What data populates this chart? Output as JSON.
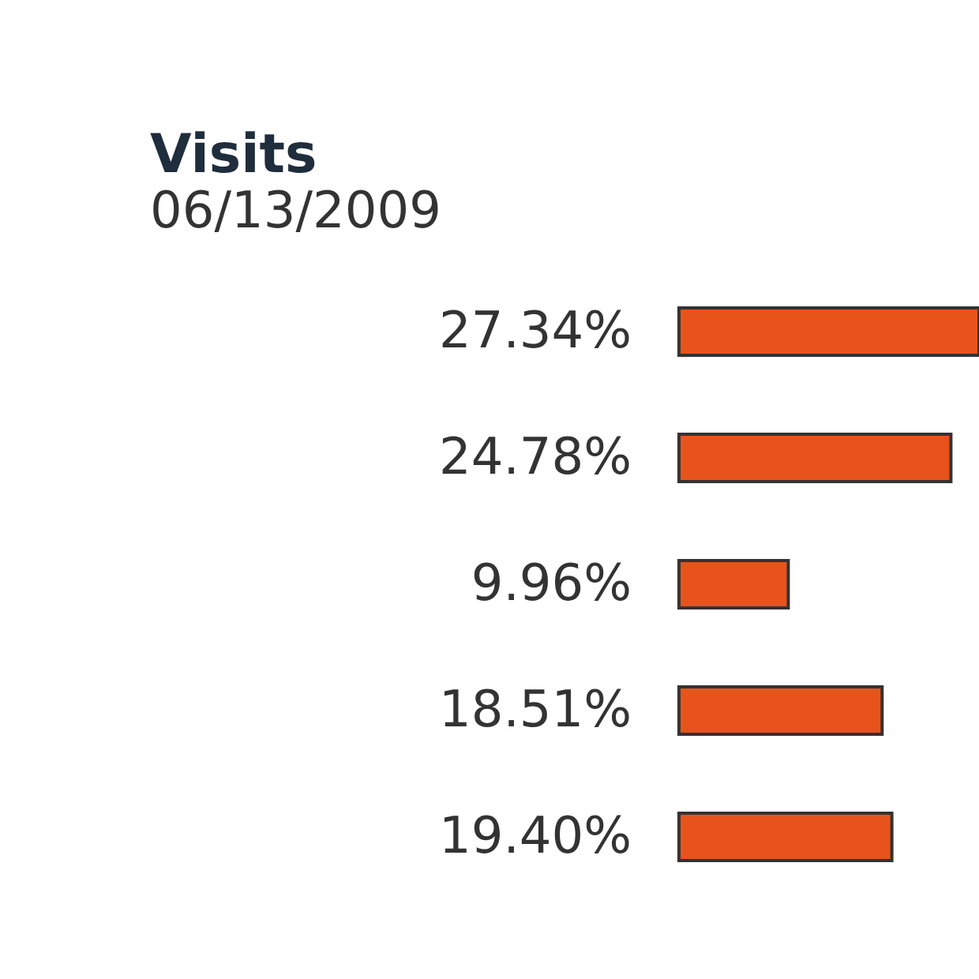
{
  "chart_data": {
    "type": "bar",
    "orientation": "horizontal",
    "title": "Visits",
    "subtitle": "06/13/2009",
    "categories": [
      null,
      null,
      null,
      null,
      null
    ],
    "values": [
      27.34,
      24.78,
      9.96,
      18.51,
      19.4
    ],
    "value_labels": [
      "27.34%",
      "24.78%",
      "9.96%",
      "18.51%",
      "19.40%"
    ],
    "color": "#e8531c",
    "tick_labels": false
  }
}
